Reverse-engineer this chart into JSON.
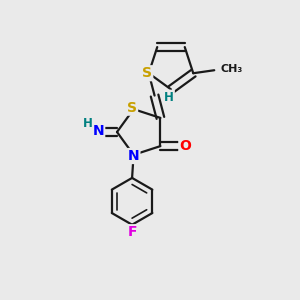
{
  "bg_color": "#eaeaea",
  "bond_color": "#1a1a1a",
  "bond_width": 1.6,
  "atom_colors": {
    "S": "#c8a000",
    "N": "#0000ff",
    "O": "#ff0000",
    "F": "#e000e0",
    "H": "#008080",
    "C": "#1a1a1a"
  },
  "font_size": 10,
  "font_size_small": 8.5
}
